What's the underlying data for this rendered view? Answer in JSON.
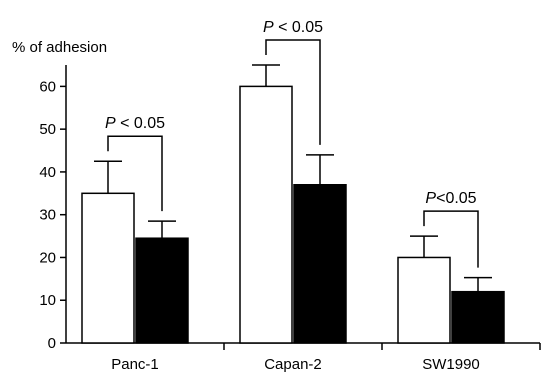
{
  "chart_data": {
    "type": "bar",
    "title": "",
    "xlabel": "",
    "ylabel": "% of adhesion",
    "ylim": [
      0,
      65
    ],
    "yticks": [
      0,
      10,
      20,
      30,
      40,
      50,
      60
    ],
    "categories": [
      "Panc-1",
      "Capan-2",
      "SW1990"
    ],
    "series": [
      {
        "color": "#ffffff",
        "values": [
          35,
          60,
          20
        ],
        "error_upper": [
          7.5,
          5,
          5
        ]
      },
      {
        "color": "#000000",
        "values": [
          24.5,
          37,
          12
        ],
        "error_upper": [
          4,
          7,
          3.3
        ]
      }
    ],
    "annotations": [
      {
        "category_index": 0,
        "text": "P < 0.05"
      },
      {
        "category_index": 1,
        "text": "P < 0.05"
      },
      {
        "category_index": 2,
        "text": "P<0.05"
      }
    ],
    "grid": false,
    "legend": "none"
  }
}
